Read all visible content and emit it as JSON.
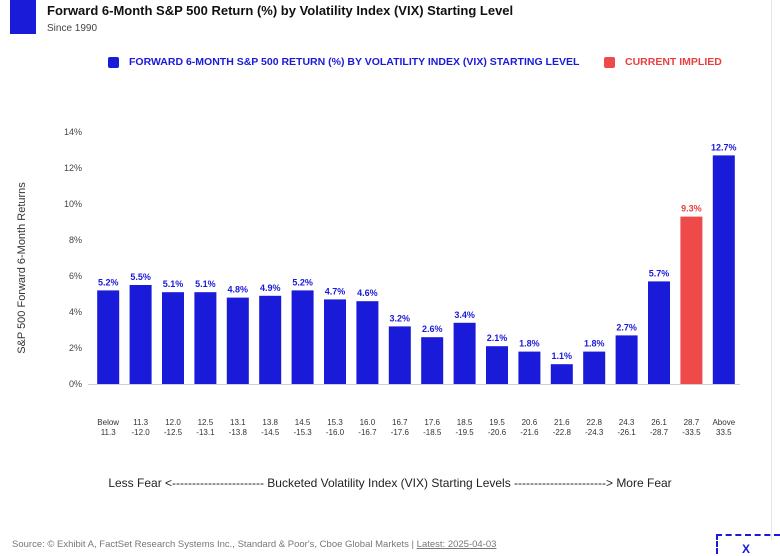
{
  "header": {
    "title": "Forward 6-Month S&P 500 Return (%) by Volatility Index (VIX) Starting Level",
    "subtitle": "Since 1990"
  },
  "legend": {
    "blue_label": "FORWARD 6-MONTH S&P 500 RETURN (%) BY VOLATILITY INDEX (VIX) STARTING LEVEL",
    "red_label": "CURRENT IMPLIED"
  },
  "colors": {
    "blue": "#1a1ad9",
    "red": "#ef4a4a"
  },
  "axis_caption": "Less Fear <----------------------- Bucketed Volatility Index (VIX) Starting Levels -----------------------> More Fear",
  "source": {
    "prefix": "Source: © Exhibit A, FactSet Research Systems Inc., Standard & Poor's, Cboe Global Markets | ",
    "date": "Latest: 2025-04-03"
  },
  "logo_text": "X",
  "chart_data": {
    "type": "bar",
    "ylabel": "S&P 500 Forward 6-Month Returns",
    "ylim": [
      0,
      14
    ],
    "yticks": [
      "0%",
      "2%",
      "4%",
      "6%",
      "8%",
      "10%",
      "12%",
      "14%"
    ],
    "grid": false,
    "categories": [
      [
        "Below",
        "11.3"
      ],
      [
        "11.3",
        "-12.0"
      ],
      [
        "12.0",
        "-12.5"
      ],
      [
        "12.5",
        "-13.1"
      ],
      [
        "13.1",
        "-13.8"
      ],
      [
        "13.8",
        "-14.5"
      ],
      [
        "14.5",
        "-15.3"
      ],
      [
        "15.3",
        "-16.0"
      ],
      [
        "16.0",
        "-16.7"
      ],
      [
        "16.7",
        "-17.6"
      ],
      [
        "17.6",
        "-18.5"
      ],
      [
        "18.5",
        "-19.5"
      ],
      [
        "19.5",
        "-20.6"
      ],
      [
        "20.6",
        "-21.6"
      ],
      [
        "21.6",
        "-22.8"
      ],
      [
        "22.8",
        "-24.3"
      ],
      [
        "24.3",
        "-26.1"
      ],
      [
        "26.1",
        "-28.7"
      ],
      [
        "28.7",
        "-33.5"
      ],
      [
        "Above",
        "33.5"
      ]
    ],
    "values": [
      5.2,
      5.5,
      5.1,
      5.1,
      4.8,
      4.9,
      5.2,
      4.7,
      4.6,
      3.2,
      2.6,
      3.4,
      2.1,
      1.8,
      1.1,
      1.8,
      2.7,
      5.7,
      9.3,
      12.7
    ],
    "labels": [
      "5.2%",
      "5.5%",
      "5.1%",
      "5.1%",
      "4.8%",
      "4.9%",
      "5.2%",
      "4.7%",
      "4.6%",
      "3.2%",
      "2.6%",
      "3.4%",
      "2.1%",
      "1.8%",
      "1.1%",
      "1.8%",
      "2.7%",
      "5.7%",
      "9.3%",
      "12.7%"
    ],
    "highlight_index": 18
  }
}
